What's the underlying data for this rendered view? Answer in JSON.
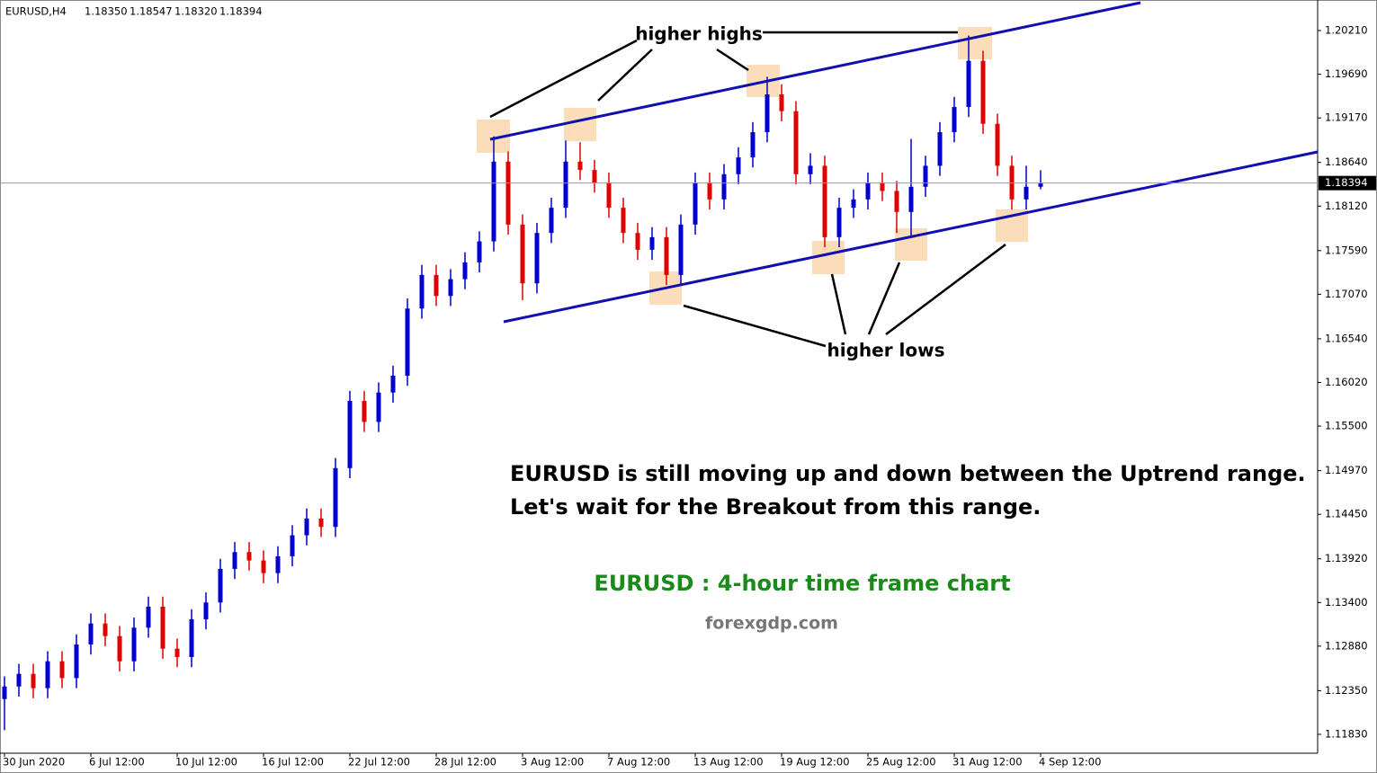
{
  "chart_data": {
    "type": "candlestick",
    "header": {
      "symbol": "EURUSD,H4",
      "ohlc": [
        "1.18350",
        "1.18547",
        "1.18320",
        "1.18394"
      ]
    },
    "categories": [
      "30 Jun 2020",
      null,
      null,
      null,
      null,
      null,
      "6 Jul 12:00",
      null,
      null,
      null,
      null,
      null,
      "10 Jul 12:00",
      null,
      null,
      null,
      null,
      null,
      "16 Jul 12:00",
      null,
      null,
      null,
      null,
      null,
      "22 Jul 12:00",
      null,
      null,
      null,
      null,
      null,
      "28 Jul 12:00",
      null,
      null,
      null,
      null,
      null,
      "3 Aug 12:00",
      null,
      null,
      null,
      null,
      null,
      "7 Aug 12:00",
      null,
      null,
      null,
      null,
      null,
      "13 Aug 12:00",
      null,
      null,
      null,
      null,
      null,
      "19 Aug 12:00",
      null,
      null,
      null,
      null,
      null,
      "25 Aug 12:00",
      null,
      null,
      null,
      null,
      null,
      "31 Aug 12:00",
      null,
      null,
      null,
      null,
      null,
      "4 Sep 12:00"
    ],
    "open": [
      1.1225,
      1.124,
      1.1255,
      1.1238,
      1.127,
      1.125,
      1.129,
      1.1315,
      1.13,
      1.127,
      1.131,
      1.1335,
      1.1285,
      1.1275,
      1.132,
      1.134,
      1.138,
      1.14,
      1.139,
      1.1375,
      1.1395,
      1.142,
      1.144,
      1.143,
      1.15,
      1.158,
      1.1555,
      1.159,
      1.161,
      1.169,
      1.173,
      1.1705,
      1.1725,
      1.1745,
      1.177,
      1.1865,
      1.179,
      1.172,
      1.178,
      1.181,
      1.1865,
      1.1855,
      1.184,
      1.181,
      1.178,
      1.176,
      1.1775,
      1.173,
      1.179,
      1.184,
      1.182,
      1.185,
      1.187,
      1.19,
      1.1945,
      1.1925,
      1.185,
      1.186,
      1.1775,
      1.181,
      1.182,
      1.184,
      1.183,
      1.1805,
      1.1835,
      1.186,
      1.19,
      1.193,
      1.1985,
      1.191,
      1.186,
      1.182,
      1.1835
    ],
    "high": [
      1.1252,
      1.1267,
      1.1267,
      1.1282,
      1.1282,
      1.1302,
      1.1327,
      1.1327,
      1.1312,
      1.1322,
      1.1347,
      1.1347,
      1.1297,
      1.1332,
      1.1352,
      1.1392,
      1.1412,
      1.1412,
      1.1402,
      1.1407,
      1.1432,
      1.1452,
      1.1452,
      1.1512,
      1.1592,
      1.1592,
      1.1602,
      1.1622,
      1.1702,
      1.1742,
      1.1742,
      1.1737,
      1.1757,
      1.1782,
      1.1895,
      1.1877,
      1.1802,
      1.1792,
      1.1822,
      1.189,
      1.1888,
      1.1867,
      1.1852,
      1.1822,
      1.1792,
      1.1787,
      1.1787,
      1.1802,
      1.1852,
      1.1852,
      1.1862,
      1.1882,
      1.1912,
      1.1966,
      1.1957,
      1.1937,
      1.1875,
      1.1872,
      1.1822,
      1.1832,
      1.1852,
      1.1852,
      1.1842,
      1.1892,
      1.1872,
      1.1912,
      1.1942,
      1.2015,
      1.1997,
      1.1922,
      1.1872,
      1.186,
      1.18547
    ],
    "low": [
      1.1188,
      1.1228,
      1.1226,
      1.1226,
      1.1238,
      1.1238,
      1.1278,
      1.1288,
      1.1258,
      1.1258,
      1.1298,
      1.1273,
      1.1263,
      1.1263,
      1.1308,
      1.1328,
      1.1368,
      1.1378,
      1.1363,
      1.1363,
      1.1383,
      1.1408,
      1.1418,
      1.1418,
      1.1488,
      1.1543,
      1.1543,
      1.1578,
      1.1598,
      1.1678,
      1.1693,
      1.1693,
      1.1713,
      1.1733,
      1.1758,
      1.1778,
      1.17,
      1.1708,
      1.1768,
      1.1798,
      1.1843,
      1.1828,
      1.1798,
      1.1768,
      1.1748,
      1.1748,
      1.1718,
      1.1718,
      1.1778,
      1.1808,
      1.1808,
      1.1838,
      1.1858,
      1.1888,
      1.1913,
      1.1838,
      1.1838,
      1.1763,
      1.1763,
      1.1798,
      1.1808,
      1.1818,
      1.178,
      1.1775,
      1.1823,
      1.1848,
      1.1888,
      1.1918,
      1.1898,
      1.1848,
      1.1808,
      1.1808,
      1.1832
    ],
    "close": [
      1.124,
      1.1255,
      1.1238,
      1.127,
      1.125,
      1.129,
      1.1315,
      1.13,
      1.127,
      1.131,
      1.1335,
      1.1285,
      1.1275,
      1.132,
      1.134,
      1.138,
      1.14,
      1.139,
      1.1375,
      1.1395,
      1.142,
      1.144,
      1.143,
      1.15,
      1.158,
      1.1555,
      1.159,
      1.161,
      1.169,
      1.173,
      1.1705,
      1.1725,
      1.1745,
      1.177,
      1.1865,
      1.179,
      1.172,
      1.178,
      1.181,
      1.1865,
      1.1855,
      1.184,
      1.181,
      1.178,
      1.176,
      1.1775,
      1.173,
      1.179,
      1.184,
      1.182,
      1.185,
      1.187,
      1.19,
      1.1945,
      1.1925,
      1.185,
      1.186,
      1.1775,
      1.181,
      1.182,
      1.184,
      1.183,
      1.1805,
      1.1835,
      1.186,
      1.19,
      1.193,
      1.1985,
      1.191,
      1.186,
      1.182,
      1.1835,
      1.18394
    ],
    "up_color": "#0000cc",
    "down_color": "#e00000",
    "current_price": 1.18394,
    "ylim": [
      1.11605,
      1.20574
    ],
    "yticks": [
      {
        "value": 1.2021,
        "label": "1.20210"
      },
      {
        "value": 1.1969,
        "label": "1.19690"
      },
      {
        "value": 1.1917,
        "label": "1.19170"
      },
      {
        "value": 1.1864,
        "label": "1.18640"
      },
      {
        "value": 1.1812,
        "label": "1.18120"
      },
      {
        "value": 1.1759,
        "label": "1.17590"
      },
      {
        "value": 1.1707,
        "label": "1.17070"
      },
      {
        "value": 1.1654,
        "label": "1.16540"
      },
      {
        "value": 1.1602,
        "label": "1.16020"
      },
      {
        "value": 1.155,
        "label": "1.15500"
      },
      {
        "value": 1.1497,
        "label": "1.14970"
      },
      {
        "value": 1.1445,
        "label": "1.14450"
      },
      {
        "value": 1.1392,
        "label": "1.13920"
      },
      {
        "value": 1.134,
        "label": "1.13400"
      },
      {
        "value": 1.1288,
        "label": "1.12880"
      },
      {
        "value": 1.1235,
        "label": "1.12350"
      },
      {
        "value": 1.1183,
        "label": "1.11830"
      }
    ],
    "annotations": {
      "highs": "higher highs",
      "lows": "higher lows",
      "line1": "EURUSD is still moving up and down between the Uptrend range.",
      "line2": "Let's wait for the Breakout from this range.",
      "caption": "EURUSD : 4-hour time frame chart",
      "site": "forexgdp.com"
    }
  }
}
